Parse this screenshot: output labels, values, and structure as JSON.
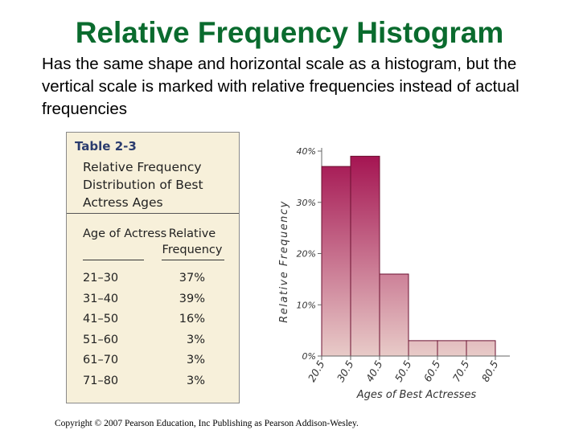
{
  "slide": {
    "title": "Relative Frequency Histogram",
    "description": "Has the same shape and horizontal scale as a histogram, but the vertical scale is marked with relative frequencies instead of actual frequencies",
    "copyright": "Copyright © 2007 Pearson Education, Inc Publishing as Pearson Addison-Wesley."
  },
  "table": {
    "label": "Table 2-3",
    "caption": "Relative Frequency Distribution of Best Actress Ages",
    "col1_header": "Age of Actress",
    "col2_header": "Relative Frequency",
    "rows": [
      {
        "age": "21–30",
        "freq": "37%"
      },
      {
        "age": "31–40",
        "freq": "39%"
      },
      {
        "age": "41–50",
        "freq": "16%"
      },
      {
        "age": "51–60",
        "freq": "3%"
      },
      {
        "age": "61–70",
        "freq": "3%"
      },
      {
        "age": "71–80",
        "freq": "3%"
      }
    ]
  },
  "chart_data": {
    "type": "bar",
    "bin_edges": [
      20.5,
      30.5,
      40.5,
      50.5,
      60.5,
      70.5,
      80.5
    ],
    "x_tick_labels": [
      "20.5",
      "30.5",
      "40.5",
      "50.5",
      "60.5",
      "70.5",
      "80.5"
    ],
    "values": [
      37,
      39,
      16,
      3,
      3,
      3
    ],
    "y_ticks": [
      0,
      10,
      20,
      30,
      40
    ],
    "y_tick_labels": [
      "0%",
      "10%",
      "20%",
      "30%",
      "40%"
    ],
    "ylim": [
      0,
      40
    ],
    "xlabel": "Ages of Best Actresses",
    "ylabel": "Relative Frequency",
    "bar_color_top": "#a3104f",
    "bar_color_bottom": "#e8cbc8",
    "grid": false
  }
}
